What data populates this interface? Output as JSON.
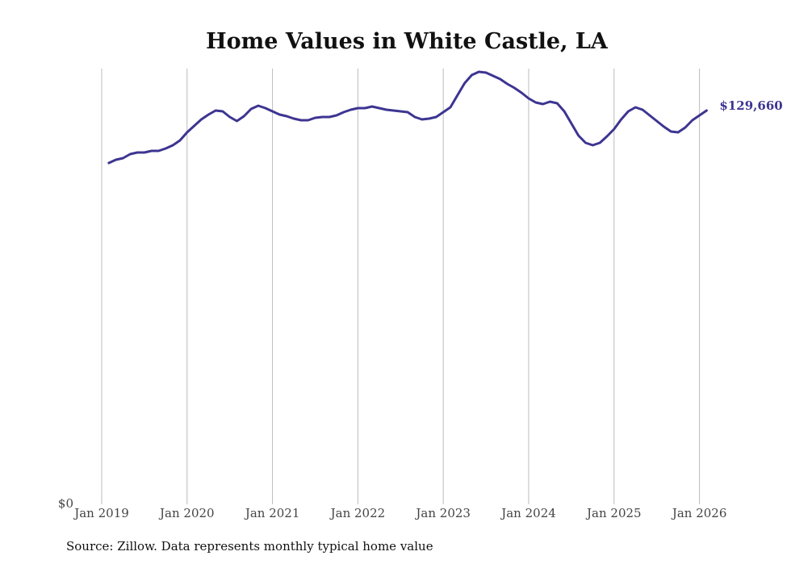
{
  "chart_data": {
    "type": "line",
    "title": "Home Values in White Castle, LA",
    "xlabel": "",
    "ylabel": "",
    "ylim": [
      0,
      142500
    ],
    "y_tick_labels": [
      {
        "value": 0,
        "label": "$0"
      }
    ],
    "x_tick_labels": [
      "Jan 2019",
      "Jan 2020",
      "Jan 2021",
      "Jan 2022",
      "Jan 2023",
      "Jan 2024",
      "Jan 2025",
      "Jan 2026"
    ],
    "x_start": "Feb 2019",
    "x_end": "Feb 2026",
    "grid": "vertical",
    "legend": "none",
    "line_color": "#3d3591",
    "end_label": "$129,660",
    "series": [
      {
        "name": "Typical home value",
        "values": [
          112400,
          113450,
          113990,
          115310,
          115850,
          115850,
          116380,
          116380,
          117170,
          118240,
          119830,
          122490,
          124610,
          126740,
          128330,
          129660,
          129400,
          127540,
          126210,
          127800,
          130190,
          131260,
          130460,
          129400,
          128330,
          127800,
          127000,
          126470,
          126470,
          127270,
          127540,
          127540,
          128070,
          129130,
          129930,
          130460,
          130460,
          130990,
          130460,
          129930,
          129660,
          129400,
          129130,
          127540,
          126740,
          127000,
          127540,
          129130,
          130720,
          134710,
          138700,
          141350,
          142420,
          142150,
          141090,
          140020,
          138430,
          137100,
          135510,
          133650,
          132320,
          131790,
          132580,
          132050,
          129400,
          125410,
          121420,
          119030,
          118240,
          119030,
          121160,
          123550,
          126740,
          129400,
          130720,
          129930,
          128070,
          126210,
          124350,
          122750,
          122490,
          124080,
          126470,
          128070,
          129660
        ]
      }
    ]
  },
  "source": "Source: Zillow. Data represents monthly typical home value"
}
